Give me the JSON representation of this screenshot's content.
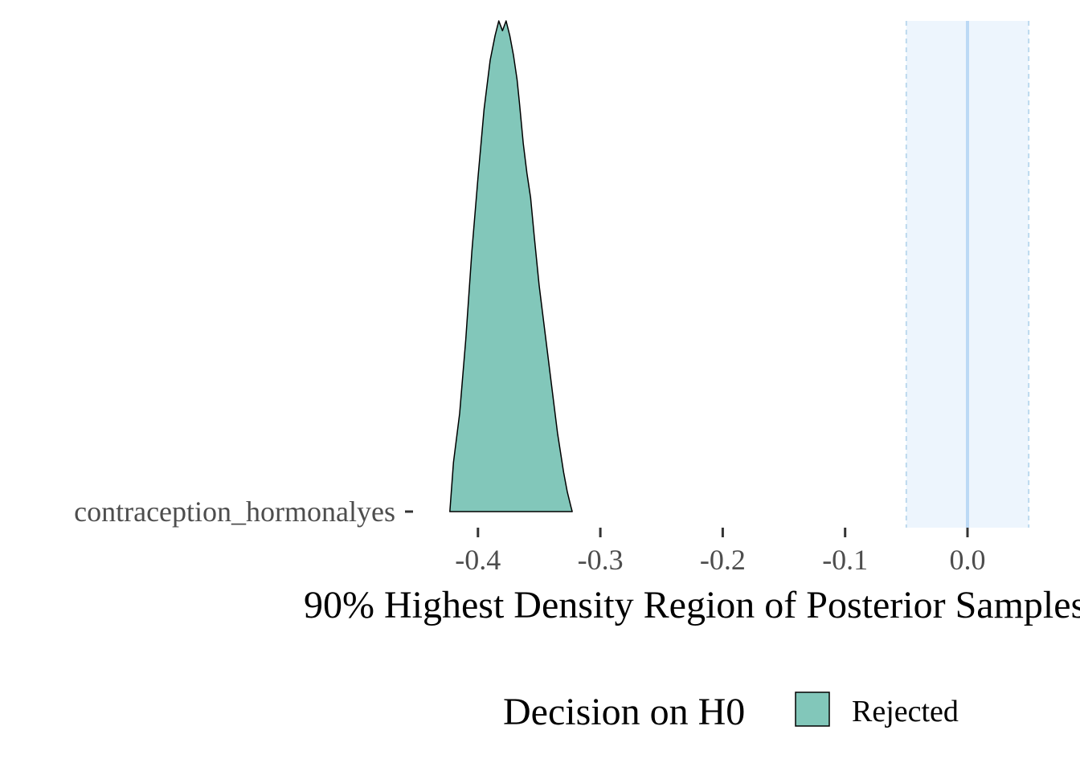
{
  "chart_data": {
    "type": "area",
    "xlabel": "90% Highest Density Region of Posterior Samples",
    "ylabel": "",
    "xlim": [
      -0.455,
      0.09
    ],
    "x_ticks": [
      -0.4,
      -0.3,
      -0.2,
      -0.1,
      0.0
    ],
    "x_tick_labels": [
      "-0.4",
      "-0.3",
      "-0.2",
      "-0.1",
      "0.0"
    ],
    "categories": [
      "contraception_hormonalyes"
    ],
    "rope": {
      "low": -0.05,
      "high": 0.05,
      "center": 0.0
    },
    "series": [
      {
        "category": "contraception_hormonalyes",
        "fill": "#82c7ba",
        "decision": "Rejected",
        "density_x": [
          -0.423,
          -0.42,
          -0.415,
          -0.41,
          -0.405,
          -0.4,
          -0.395,
          -0.39,
          -0.386,
          -0.383,
          -0.38,
          -0.377,
          -0.374,
          -0.371,
          -0.368,
          -0.366,
          -0.363,
          -0.36,
          -0.357,
          -0.354,
          -0.35,
          -0.345,
          -0.34,
          -0.335,
          -0.33,
          -0.327,
          -0.324,
          -0.323
        ],
        "density_y": [
          0.0,
          0.1,
          0.2,
          0.35,
          0.53,
          0.68,
          0.82,
          0.92,
          0.97,
          1.0,
          0.98,
          1.0,
          0.97,
          0.93,
          0.88,
          0.83,
          0.75,
          0.69,
          0.64,
          0.56,
          0.46,
          0.36,
          0.26,
          0.16,
          0.08,
          0.04,
          0.01,
          0.0
        ]
      }
    ],
    "legend": {
      "title": "Decision on H0",
      "entries": [
        {
          "label": "Rejected",
          "color": "#82c7ba"
        }
      ],
      "position": "bottom"
    },
    "colors": {
      "rope_fill": "#edf5fd",
      "rope_edge": "#bcd9ee",
      "rope_center": "#bcd9f5",
      "density_fill": "#82c7ba"
    }
  }
}
